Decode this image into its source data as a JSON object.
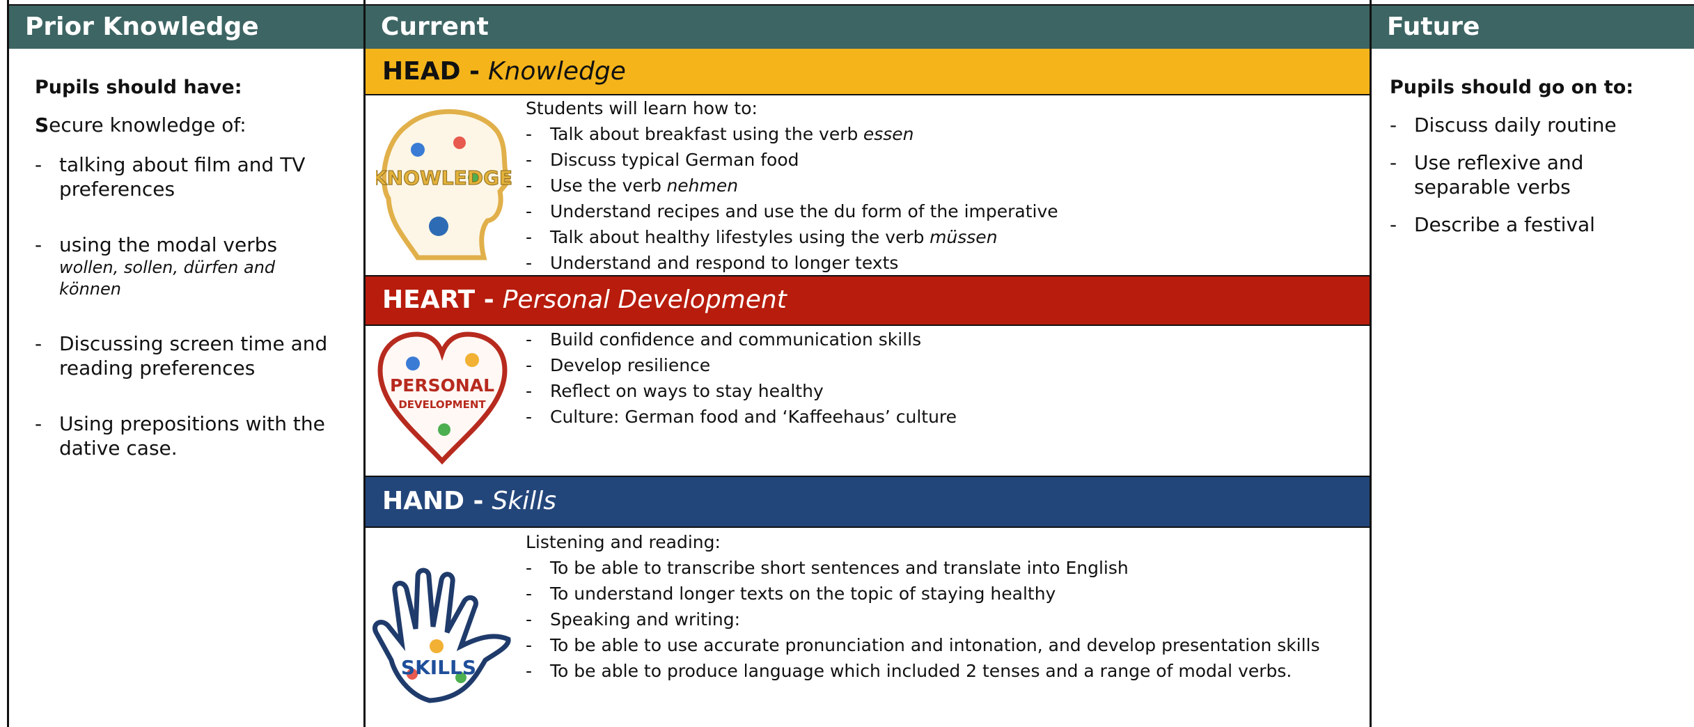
{
  "header": {
    "prior": "Prior Knowledge",
    "current": "Current",
    "future": "Future"
  },
  "prior": {
    "heading": "Pupils should have:",
    "intro_bold": "S",
    "intro": "ecure knowledge of:",
    "items": [
      {
        "text": "talking about film and TV preferences"
      },
      {
        "text": "using the modal verbs",
        "italic": "wollen, sollen, dürfen and können"
      },
      {
        "text": "Discussing screen time and reading preferences"
      },
      {
        "text": "Using prepositions with the dative case."
      }
    ]
  },
  "future": {
    "heading": "Pupils should go on to:",
    "items": [
      {
        "text": "Discuss daily routine"
      },
      {
        "text": "Use reflexive and separable verbs"
      },
      {
        "text": "Describe a festival"
      }
    ]
  },
  "sections": [
    {
      "label": "HEAD -",
      "subtitle": "Knowledge",
      "icon_text": [
        "KNOWLEDGE"
      ],
      "intro": "Students will learn how to:",
      "items": [
        {
          "text": "Talk about breakfast using the verb",
          "italic": "essen"
        },
        {
          "text": "Discuss typical German food"
        },
        {
          "text": "Use the verb",
          "italic": "nehmen"
        },
        {
          "text": "Understand recipes and use the du form of the imperative"
        },
        {
          "text": "Talk about healthy lifestyles using the verb",
          "italic": "müssen"
        },
        {
          "text": "Understand and respond to longer texts"
        }
      ]
    },
    {
      "label": "HEART -",
      "subtitle": "Personal Development",
      "icon_text": [
        "PERSONAL",
        "DEVELOPMENT"
      ],
      "items": [
        {
          "text": "Build confidence and communication skills"
        },
        {
          "text": "Develop resilience"
        },
        {
          "text": "Reflect on ways to stay healthy"
        },
        {
          "text": "Culture: German food and ‘Kaffeehaus’ culture"
        }
      ]
    },
    {
      "label": "HAND -",
      "subtitle": "Skills",
      "icon_text": [
        "SKILLS"
      ],
      "intro": "Listening and reading:",
      "items": [
        {
          "text": "To be able to transcribe short sentences and translate into English"
        },
        {
          "text": "To understand longer texts on the topic of staying healthy"
        },
        {
          "text": "Speaking and writing:"
        },
        {
          "text": "To be able to use accurate pronunciation and intonation, and develop presentation skills"
        },
        {
          "text": "To be able to produce language which included 2 tenses and a range of modal verbs."
        }
      ]
    }
  ]
}
